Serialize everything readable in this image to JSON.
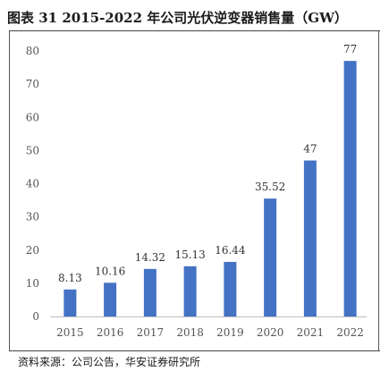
{
  "title": "图表 31 2015-2022 年公司光伏逆变器销售量（GW）",
  "source": "资料来源：公司公告，华安证券研究所",
  "chart_data": {
    "type": "bar",
    "title": "图表 31 2015-2022 年公司光伏逆变器销售量（GW）",
    "categories": [
      "2015",
      "2016",
      "2017",
      "2018",
      "2019",
      "2020",
      "2021",
      "2022"
    ],
    "values": [
      8.13,
      10.16,
      14.32,
      15.13,
      16.44,
      35.52,
      47,
      77
    ],
    "data_labels": [
      "8.13",
      "10.16",
      "14.32",
      "15.13",
      "16.44",
      "35.52",
      "47",
      "77"
    ],
    "y_ticks": [
      0,
      10,
      20,
      30,
      40,
      50,
      60,
      70,
      80
    ],
    "ylim": [
      0,
      80
    ],
    "grid": false,
    "legend": "none",
    "bar_color": "#4472C4"
  }
}
